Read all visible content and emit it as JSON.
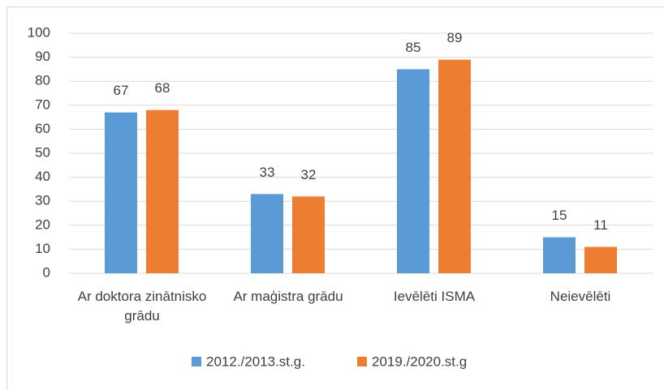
{
  "chart_data": {
    "type": "bar",
    "categories": [
      "Ar doktora zinātnisko grādu",
      "Ar maģistra grādu",
      "Ievēlēti ISMA",
      "Neievēlēti"
    ],
    "series": [
      {
        "name": "2012./2013.st.g.",
        "color": "#5b9bd5",
        "values": [
          67,
          33,
          85,
          15
        ]
      },
      {
        "name": "2019./2020.st.g",
        "color": "#ed7d31",
        "values": [
          68,
          32,
          89,
          11
        ]
      }
    ],
    "ylim": [
      0,
      100
    ],
    "yticks": [
      0,
      10,
      20,
      30,
      40,
      50,
      60,
      70,
      80,
      90,
      100
    ],
    "grid": true,
    "legend": "bottom"
  }
}
